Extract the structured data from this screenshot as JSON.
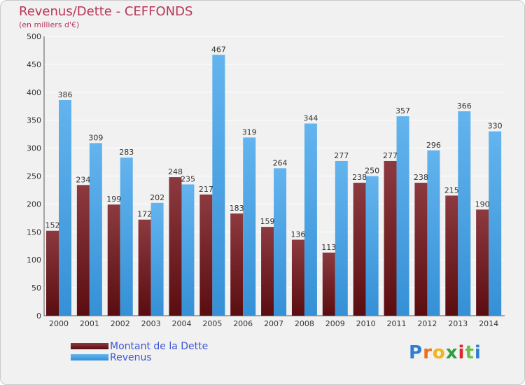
{
  "header": {
    "title": "Revenus/Dette - CEFFONDS",
    "subtitle": "(en milliers d'€)"
  },
  "legend": [
    {
      "label": "Montant de la Dette",
      "color": "#6b1418"
    },
    {
      "label": "Revenus",
      "color": "#4fa3e3"
    }
  ],
  "logo": {
    "letters": [
      "P",
      "r",
      "o",
      "x",
      "i",
      "t",
      "i"
    ],
    "colors": [
      "#2f7fd0",
      "#e8731c",
      "#f0b41c",
      "#2f9e3c",
      "#d92b2b",
      "#6cc04a",
      "#2f7fd0"
    ]
  },
  "colors": {
    "debt_top": "#8c3a3f",
    "debt_bottom": "#5a0d10",
    "rev_top": "#63b4ee",
    "rev_bottom": "#3590d6",
    "grid": "#ffffff",
    "axis_text": "#333333"
  },
  "chart_data": {
    "type": "bar",
    "title": "Revenus/Dette - CEFFONDS",
    "ylabel": "(en milliers d'€)",
    "xlabel": "",
    "ylim": [
      0,
      500
    ],
    "yticks": [
      0,
      50,
      100,
      150,
      200,
      250,
      300,
      350,
      400,
      450,
      500
    ],
    "grid": true,
    "categories": [
      "2000",
      "2001",
      "2002",
      "2003",
      "2004",
      "2005",
      "2006",
      "2007",
      "2008",
      "2009",
      "2010",
      "2011",
      "2012",
      "2013",
      "2014"
    ],
    "series": [
      {
        "name": "Montant de la Dette",
        "values": [
          152,
          234,
          199,
          172,
          248,
          217,
          183,
          159,
          136,
          113,
          238,
          277,
          238,
          215,
          190
        ]
      },
      {
        "name": "Revenus",
        "values": [
          386,
          309,
          283,
          202,
          235,
          467,
          319,
          264,
          344,
          277,
          250,
          357,
          296,
          366,
          330
        ]
      }
    ]
  }
}
